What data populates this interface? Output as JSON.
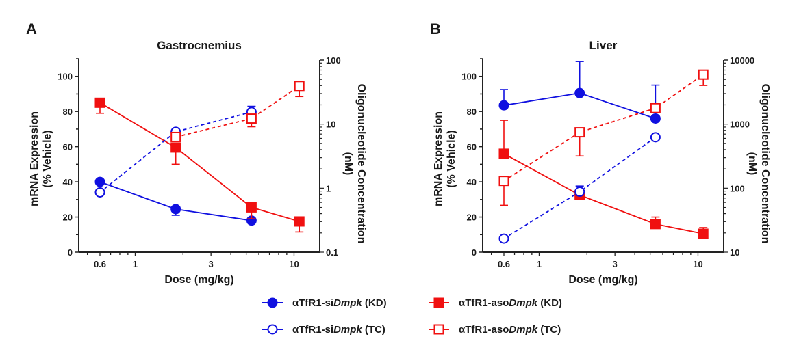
{
  "colors": {
    "si": "#1010e0",
    "aso": "#f01010"
  },
  "legend": [
    {
      "label_a": "αTfR1-si",
      "label_i": "Dmpk",
      "label_b": " (KD)",
      "series": "si_kd",
      "color": "#1010e0",
      "marker": "circle",
      "filled": true,
      "dashed": false
    },
    {
      "label_a": "αTfR1-aso",
      "label_i": "Dmpk",
      "label_b": " (KD)",
      "series": "aso_kd",
      "color": "#f01010",
      "marker": "square",
      "filled": true,
      "dashed": false
    },
    {
      "label_a": "αTfR1-si",
      "label_i": "Dmpk",
      "label_b": " (TC)",
      "series": "si_tc",
      "color": "#1010e0",
      "marker": "circle",
      "filled": false,
      "dashed": true
    },
    {
      "label_a": "αTfR1-aso",
      "label_i": "Dmpk",
      "label_b": " (TC)",
      "series": "aso_tc",
      "color": "#f01010",
      "marker": "square",
      "filled": false,
      "dashed": true
    }
  ],
  "chart_data": [
    {
      "type": "line",
      "panel_label": "A",
      "title": "Gastrocnemius",
      "xlabel": "Dose (mg/kg)",
      "xscale": "log",
      "xlim": [
        0.5,
        12
      ],
      "xticks": [
        0.6,
        1,
        3,
        10
      ],
      "ylabel_left": [
        "mRNA  Expression",
        "(% Vehicle)"
      ],
      "ylim_left": [
        0,
        110
      ],
      "yticks_left": [
        0,
        20,
        40,
        60,
        80,
        100
      ],
      "ylabel_right": [
        "Oligonucleotide Concentration",
        "(nM)"
      ],
      "yscale_right": "log",
      "ylim_right": [
        0.1,
        100
      ],
      "yticks_right": [
        0.1,
        1,
        10,
        100
      ],
      "series": [
        {
          "key": "si_kd",
          "axis": "left",
          "x": [
            0.6,
            1.8,
            5.4
          ],
          "y": [
            40,
            24.5,
            18
          ],
          "err_to": [
            null,
            21,
            null
          ]
        },
        {
          "key": "aso_kd",
          "axis": "left",
          "x": [
            0.6,
            1.8,
            5.4,
            10.8
          ],
          "y": [
            85,
            59.5,
            25.5,
            17.5
          ],
          "err_to": [
            79,
            50,
            19,
            11.5
          ]
        },
        {
          "key": "si_tc",
          "axis": "right",
          "x": [
            0.6,
            1.8,
            5.4
          ],
          "y": [
            0.86,
            7.6,
            15.5
          ],
          "err_to": [
            null,
            null,
            19
          ]
        },
        {
          "key": "aso_tc",
          "axis": "right",
          "x": [
            1.8,
            5.4,
            10.8
          ],
          "y": [
            6.3,
            12.2,
            39.5
          ],
          "err_to": [
            5.4,
            9.1,
            27
          ]
        }
      ]
    },
    {
      "type": "line",
      "panel_label": "B",
      "title": "Liver",
      "xlabel": "Dose (mg/kg)",
      "xscale": "log",
      "xlim": [
        0.5,
        12
      ],
      "xticks": [
        0.6,
        1,
        3,
        10
      ],
      "ylabel_left": [
        "mRNA  Expression",
        "(% Vehicle)"
      ],
      "ylim_left": [
        0,
        110
      ],
      "yticks_left": [
        0,
        20,
        40,
        60,
        80,
        100
      ],
      "ylabel_right": [
        "Oligonucleotide Concentration",
        "(nM)"
      ],
      "yscale_right": "log",
      "ylim_right": [
        10,
        10000
      ],
      "yticks_right": [
        10,
        100,
        1000,
        10000
      ],
      "series": [
        {
          "key": "si_kd",
          "axis": "left",
          "x": [
            0.6,
            1.8,
            5.4
          ],
          "y": [
            83.5,
            90.5,
            76
          ],
          "err_to": [
            92.5,
            108.5,
            95
          ]
        },
        {
          "key": "aso_kd",
          "axis": "left",
          "x": [
            0.6,
            1.8,
            5.4,
            10.8
          ],
          "y": [
            56,
            32.5,
            16,
            10.5
          ],
          "err_to": [
            75,
            null,
            20,
            14
          ]
        },
        {
          "key": "si_tc",
          "axis": "right",
          "x": [
            0.6,
            1.8,
            5.4
          ],
          "y": [
            16.3,
            88,
            624
          ],
          "err_to": [
            null,
            108,
            null
          ]
        },
        {
          "key": "aso_tc",
          "axis": "right",
          "x": [
            0.6,
            1.8,
            5.4,
            10.8
          ],
          "y": [
            130,
            746,
            1780,
            5940
          ],
          "err_to": [
            54,
            318,
            null,
            4020
          ]
        }
      ]
    }
  ]
}
